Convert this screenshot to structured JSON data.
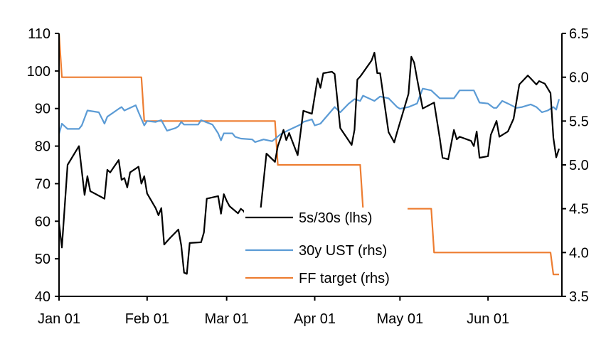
{
  "chart_data": {
    "type": "line",
    "title": "",
    "xlabel": "",
    "ylabel": "",
    "y2label": "",
    "xlim": [
      "01-01",
      "06-27"
    ],
    "ylim": [
      40,
      110
    ],
    "y2lim": [
      3.5,
      6.5
    ],
    "x_ticks": [
      {
        "date": "01-01",
        "label": "Jan 01"
      },
      {
        "date": "02-01",
        "label": "Feb 01"
      },
      {
        "date": "03-01",
        "label": "Mar 01"
      },
      {
        "date": "04-01",
        "label": "Apr 01"
      },
      {
        "date": "05-01",
        "label": "May 01"
      },
      {
        "date": "06-01",
        "label": "Jun 01"
      }
    ],
    "y_ticks": [
      "40",
      "50",
      "60",
      "70",
      "80",
      "90",
      "100",
      "110"
    ],
    "y2_ticks": [
      "3.5",
      "4.0",
      "4.5",
      "5.0",
      "5.5",
      "6.0",
      "6.5"
    ],
    "grid": false,
    "legend_placement": "bottom-center",
    "series": [
      {
        "name": "5s/30s (lhs)",
        "axis": "left",
        "color": "#000000",
        "points": [
          [
            "01-01",
            59.5
          ],
          [
            "01-02",
            53
          ],
          [
            "01-04",
            75
          ],
          [
            "01-08",
            80
          ],
          [
            "01-10",
            67
          ],
          [
            "01-11",
            72
          ],
          [
            "01-12",
            68
          ],
          [
            "01-17",
            66
          ],
          [
            "01-18",
            73.7
          ],
          [
            "01-19",
            73
          ],
          [
            "01-22",
            76.3
          ],
          [
            "01-23",
            71
          ],
          [
            "01-24",
            71.5
          ],
          [
            "01-25",
            69
          ],
          [
            "01-26",
            73
          ],
          [
            "01-29",
            74.5
          ],
          [
            "01-30",
            70
          ],
          [
            "01-31",
            72
          ],
          [
            "02-01",
            67.4
          ],
          [
            "02-04",
            63.5
          ],
          [
            "02-05",
            61.6
          ],
          [
            "02-06",
            63.5
          ],
          [
            "02-07",
            53.8
          ],
          [
            "02-09",
            55.5
          ],
          [
            "02-12",
            57.8
          ],
          [
            "02-13",
            53.6
          ],
          [
            "02-14",
            46.3
          ],
          [
            "02-15",
            46
          ],
          [
            "02-16",
            54.2
          ],
          [
            "02-20",
            54.4
          ],
          [
            "02-21",
            57
          ],
          [
            "02-22",
            66
          ],
          [
            "02-26",
            66.7
          ],
          [
            "02-27",
            62
          ],
          [
            "02-28",
            67.2
          ],
          [
            "03-01",
            65.4
          ],
          [
            "03-02",
            64
          ],
          [
            "03-05",
            62.1
          ],
          [
            "03-06",
            63.3
          ],
          [
            "03-07",
            62.7
          ],
          [
            "03-08",
            61.4
          ],
          [
            "03-09",
            61
          ],
          [
            "03-12",
            62.1
          ],
          [
            "03-13",
            63.5
          ],
          [
            "03-15",
            78
          ],
          [
            "03-18",
            75.8
          ],
          [
            "03-19",
            80
          ],
          [
            "03-21",
            84.3
          ],
          [
            "03-22",
            81.6
          ],
          [
            "03-23",
            83.5
          ],
          [
            "03-26",
            77.6
          ],
          [
            "03-28",
            89.4
          ],
          [
            "03-31",
            88.6
          ],
          [
            "04-02",
            98
          ],
          [
            "04-03",
            95.5
          ],
          [
            "04-04",
            99.4
          ],
          [
            "04-07",
            99.8
          ],
          [
            "04-08",
            99.2
          ],
          [
            "04-10",
            84.8
          ],
          [
            "04-14",
            80.3
          ],
          [
            "04-15",
            84.3
          ],
          [
            "04-16",
            97.7
          ],
          [
            "04-17",
            98.5
          ],
          [
            "04-21",
            102.8
          ],
          [
            "04-22",
            104.9
          ],
          [
            "04-23",
            99.4
          ],
          [
            "04-24",
            99.4
          ],
          [
            "04-27",
            83.7
          ],
          [
            "04-29",
            81
          ],
          [
            "04-30",
            83.7
          ],
          [
            "05-04",
            93.9
          ],
          [
            "05-05",
            103.8
          ],
          [
            "05-06",
            102.2
          ],
          [
            "05-07",
            98
          ],
          [
            "05-09",
            90
          ],
          [
            "05-13",
            91.6
          ],
          [
            "05-15",
            82.2
          ],
          [
            "05-16",
            76.9
          ],
          [
            "05-18",
            76.5
          ],
          [
            "05-20",
            84.3
          ],
          [
            "05-21",
            81.8
          ],
          [
            "05-22",
            82.5
          ],
          [
            "05-26",
            81.4
          ],
          [
            "05-27",
            80
          ],
          [
            "05-28",
            83.9
          ],
          [
            "05-29",
            76.9
          ],
          [
            "06-01",
            77.3
          ],
          [
            "06-02",
            83
          ],
          [
            "06-04",
            86.7
          ],
          [
            "06-05",
            82.5
          ],
          [
            "06-08",
            83.9
          ],
          [
            "06-10",
            87.3
          ],
          [
            "06-12",
            96.4
          ],
          [
            "06-15",
            98.8
          ],
          [
            "06-16",
            98
          ],
          [
            "06-18",
            96.4
          ],
          [
            "06-19",
            97.3
          ],
          [
            "06-21",
            96.6
          ],
          [
            "06-23",
            94.1
          ],
          [
            "06-24",
            82.2
          ],
          [
            "06-25",
            77
          ],
          [
            "06-26",
            79.3
          ]
        ]
      },
      {
        "name": "30y UST (rhs)",
        "axis": "right",
        "color": "#5B9BD5",
        "points": [
          [
            "01-01",
            5.35
          ],
          [
            "01-02",
            5.47
          ],
          [
            "01-04",
            5.41
          ],
          [
            "01-08",
            5.41
          ],
          [
            "01-09",
            5.45
          ],
          [
            "01-11",
            5.62
          ],
          [
            "01-15",
            5.6
          ],
          [
            "01-17",
            5.47
          ],
          [
            "01-18",
            5.55
          ],
          [
            "01-22",
            5.64
          ],
          [
            "01-23",
            5.66
          ],
          [
            "01-24",
            5.62
          ],
          [
            "01-28",
            5.68
          ],
          [
            "01-29",
            5.6
          ],
          [
            "01-31",
            5.45
          ],
          [
            "02-01",
            5.5
          ],
          [
            "02-04",
            5.49
          ],
          [
            "02-06",
            5.51
          ],
          [
            "02-08",
            5.39
          ],
          [
            "02-11",
            5.42
          ],
          [
            "02-12",
            5.44
          ],
          [
            "02-13",
            5.49
          ],
          [
            "02-14",
            5.46
          ],
          [
            "02-19",
            5.46
          ],
          [
            "02-20",
            5.51
          ],
          [
            "02-24",
            5.46
          ],
          [
            "02-26",
            5.36
          ],
          [
            "02-27",
            5.28
          ],
          [
            "02-28",
            5.36
          ],
          [
            "03-03",
            5.36
          ],
          [
            "03-04",
            5.32
          ],
          [
            "03-06",
            5.3
          ],
          [
            "03-10",
            5.29
          ],
          [
            "03-11",
            5.26
          ],
          [
            "03-14",
            5.29
          ],
          [
            "03-17",
            5.27
          ],
          [
            "03-20",
            5.35
          ],
          [
            "03-23",
            5.4
          ],
          [
            "03-25",
            5.43
          ],
          [
            "03-27",
            5.46
          ],
          [
            "03-28",
            5.49
          ],
          [
            "03-31",
            5.52
          ],
          [
            "04-01",
            5.45
          ],
          [
            "04-03",
            5.47
          ],
          [
            "04-08",
            5.66
          ],
          [
            "04-10",
            5.6
          ],
          [
            "04-13",
            5.7
          ],
          [
            "04-15",
            5.75
          ],
          [
            "04-17",
            5.73
          ],
          [
            "04-18",
            5.79
          ],
          [
            "04-22",
            5.73
          ],
          [
            "04-24",
            5.78
          ],
          [
            "04-27",
            5.76
          ],
          [
            "04-30",
            5.66
          ],
          [
            "05-01",
            5.64
          ],
          [
            "05-04",
            5.66
          ],
          [
            "05-07",
            5.7
          ],
          [
            "05-09",
            5.87
          ],
          [
            "05-12",
            5.85
          ],
          [
            "05-15",
            5.76
          ],
          [
            "05-20",
            5.76
          ],
          [
            "05-22",
            5.85
          ],
          [
            "05-27",
            5.85
          ],
          [
            "05-29",
            5.71
          ],
          [
            "06-01",
            5.7
          ],
          [
            "06-03",
            5.65
          ],
          [
            "06-04",
            5.65
          ],
          [
            "06-06",
            5.73
          ],
          [
            "06-08",
            5.7
          ],
          [
            "06-11",
            5.65
          ],
          [
            "06-13",
            5.66
          ],
          [
            "06-16",
            5.69
          ],
          [
            "06-18",
            5.66
          ],
          [
            "06-20",
            5.6
          ],
          [
            "06-22",
            5.62
          ],
          [
            "06-24",
            5.66
          ],
          [
            "06-25",
            5.63
          ],
          [
            "06-26",
            5.75
          ]
        ]
      },
      {
        "name": "FF target (rhs)",
        "axis": "right",
        "color": "#ED7D31",
        "points": [
          [
            "01-01",
            6.5
          ],
          [
            "01-02",
            6.0
          ],
          [
            "01-30",
            6.0
          ],
          [
            "01-31",
            5.5
          ],
          [
            "03-18",
            5.5
          ],
          [
            "03-19",
            5.0
          ],
          [
            "04-17",
            5.0
          ],
          [
            "04-18",
            4.5
          ],
          [
            "05-12",
            4.5
          ],
          [
            "05-13",
            4.0
          ],
          [
            "06-23",
            4.0
          ],
          [
            "06-24",
            3.75
          ],
          [
            "06-26",
            3.75
          ]
        ]
      }
    ]
  }
}
